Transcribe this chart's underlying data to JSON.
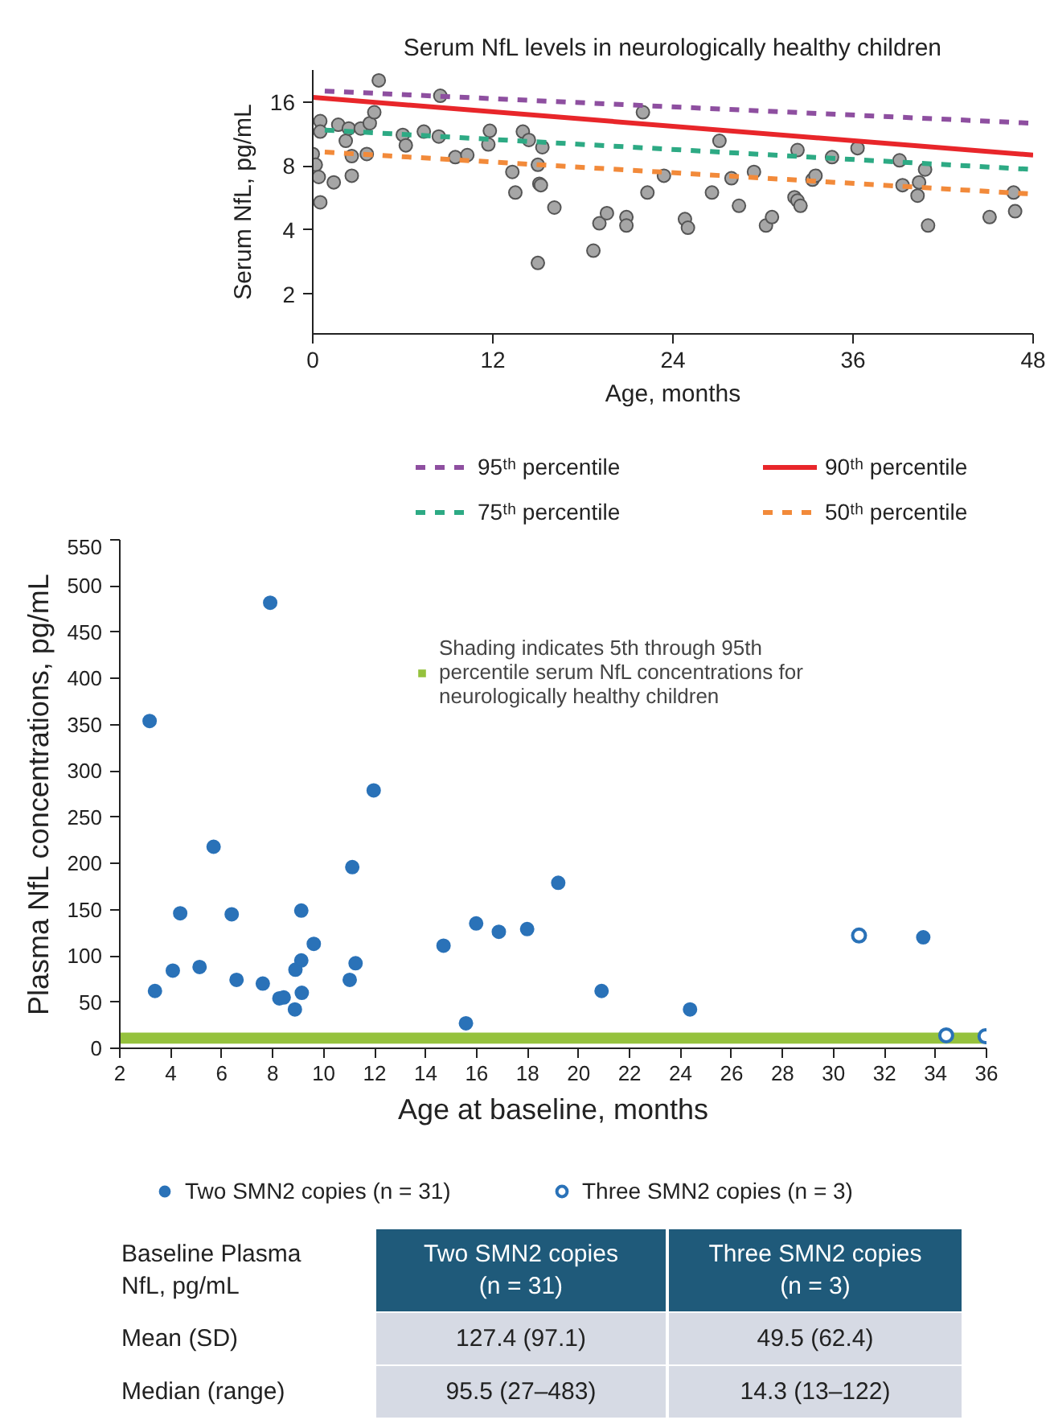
{
  "chart_data": [
    {
      "type": "scatter",
      "title": "Serum NfL levels in neurologically healthy children",
      "xlabel": "Age, months",
      "ylabel": "Serum NfL, pg/mL",
      "log": "y",
      "xlim": [
        0,
        48
      ],
      "xticks": [
        0,
        12,
        24,
        36,
        48
      ],
      "ylim": [
        1.3,
        22.6
      ],
      "yticks": [
        2,
        4,
        8,
        16
      ],
      "legend": "bottom",
      "series": [
        {
          "type": "scatter",
          "marker": "circle",
          "color": "#a6a6a6",
          "x": [
            0,
            0.2,
            0.4,
            0.5,
            0.5,
            0.5,
            1.4,
            1.7,
            2.2,
            2.4,
            2.6,
            2.6,
            3.2,
            3.6,
            3.8,
            4.1,
            4.4,
            6.0,
            6.2,
            7.4,
            8.4,
            8.5,
            9.5,
            10.3,
            11.7,
            11.8,
            13.3,
            13.5,
            14.0,
            14.4,
            15.0,
            15.1,
            15.3,
            15.2,
            15.0,
            16.1,
            18.7,
            19.1,
            19.6,
            20.9,
            20.9,
            22.0,
            22.3,
            23.4,
            24.8,
            25.0,
            26.6,
            27.1,
            27.9,
            28.4,
            29.4,
            30.2,
            30.6,
            32.1,
            32.3,
            32.3,
            32.5,
            33.3,
            33.5,
            34.6,
            36.3,
            39.1,
            39.3,
            40.3,
            40.4,
            40.8,
            41.0,
            45.1,
            46.7,
            46.8
          ],
          "values": [
            9.1,
            8.1,
            7.1,
            5.4,
            13.0,
            11.6,
            6.7,
            12.5,
            10.5,
            12.0,
            8.9,
            7.2,
            12.0,
            9.1,
            12.7,
            14.3,
            20.2,
            11.2,
            10.0,
            11.6,
            11.0,
            17.1,
            8.8,
            9.0,
            10.1,
            11.7,
            7.5,
            6.0,
            11.6,
            10.6,
            8.1,
            6.6,
            9.8,
            6.5,
            2.8,
            5.1,
            3.2,
            4.3,
            4.8,
            4.6,
            4.2,
            14.3,
            6.0,
            7.2,
            4.5,
            4.1,
            6.0,
            10.5,
            7.0,
            5.2,
            7.5,
            4.2,
            4.6,
            5.7,
            5.5,
            9.5,
            5.2,
            6.9,
            7.2,
            8.8,
            9.7,
            8.5,
            6.5,
            5.8,
            6.7,
            7.7,
            4.2,
            4.6,
            6.0,
            4.9
          ]
        },
        {
          "type": "line",
          "name": "95ᵗʰ percentile",
          "color": "#8e4fa0",
          "line_style": "dashed",
          "x": [
            0.8,
            48
          ],
          "values": [
            18.0,
            12.7
          ]
        },
        {
          "type": "line",
          "name": "90ᵗʰ percentile",
          "color": "#e8262a",
          "line_style": "solid",
          "x": [
            0,
            48
          ],
          "values": [
            16.8,
            9.0
          ]
        },
        {
          "type": "line",
          "name": "75ᵗʰ percentile",
          "color": "#2daa84",
          "line_style": "dashed",
          "x": [
            0.8,
            48
          ],
          "values": [
            11.8,
            7.7
          ]
        },
        {
          "type": "line",
          "name": "50ᵗʰ percentile",
          "color": "#f28a3a",
          "line_style": "dashed",
          "x": [
            0.8,
            48
          ],
          "values": [
            9.3,
            5.9
          ]
        }
      ]
    },
    {
      "type": "scatter",
      "xlabel": "Age at baseline, months",
      "ylabel": "Plasma NfL concentrations, pg/mL",
      "xlim": [
        2,
        36
      ],
      "xticks": [
        2,
        4,
        6,
        8,
        10,
        12,
        14,
        16,
        18,
        20,
        22,
        24,
        26,
        28,
        30,
        32,
        34,
        36
      ],
      "ylim": [
        0,
        550
      ],
      "yticks": [
        0,
        50,
        100,
        150,
        200,
        250,
        300,
        350,
        400,
        450,
        500,
        550
      ],
      "legend": "bottom",
      "bands": [
        {
          "axis": "y",
          "from": 5,
          "to": 17,
          "color": "#95c23d",
          "label": "Shading indicates 5th through 95th percentile serum NfL concentrations for neurologically healthy children"
        }
      ],
      "series": [
        {
          "type": "scatter",
          "marker": "circle",
          "name": "Two SMN2 copies (n = 31)",
          "color": "#2a72b8",
          "x": [
            3.17,
            3.38,
            4.08,
            4.37,
            5.13,
            5.68,
            6.39,
            6.58,
            7.61,
            7.9,
            8.26,
            8.43,
            8.87,
            8.89,
            9.12,
            9.12,
            9.14,
            9.61,
            11.02,
            11.12,
            11.25,
            11.96,
            14.7,
            15.58,
            15.98,
            16.87,
            17.98,
            19.2,
            20.9,
            24.37,
            33.52
          ],
          "values": [
            354,
            62,
            84,
            146,
            88,
            218,
            145,
            74,
            70,
            482,
            54,
            55,
            42,
            85,
            149,
            95,
            60,
            113,
            74,
            196,
            92,
            279,
            111,
            27,
            135,
            126,
            129,
            179,
            62,
            42,
            120
          ]
        },
        {
          "type": "scatter",
          "marker": "circle",
          "name": "Three SMN2 copies (n = 3)",
          "color": "#2a72b8",
          "x": [
            31.0,
            34.42,
            35.96
          ],
          "values": [
            122,
            14,
            13
          ]
        }
      ]
    },
    {
      "type": "other",
      "annotations": [
        "Baseline Plasma NfL, pg/mL",
        "Two SMN2 copies (n = 31)",
        "Three SMN2 copies (n = 3)",
        "Mean (SD)",
        "127.4 (97.1)",
        "49.5 (62.4)",
        "Median (range)",
        "95.5 (27–483)",
        "14.3 (13–122)"
      ]
    }
  ]
}
